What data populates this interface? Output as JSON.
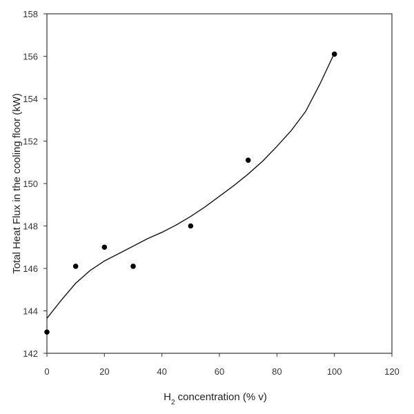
{
  "chart_data": {
    "type": "scatter",
    "title": "",
    "xlabel": {
      "main": "H",
      "sub": "2",
      "rest": " concentration (% v)"
    },
    "ylabel": "Total Heat Flux in the cooling floor (kW)",
    "xlim": [
      0,
      120
    ],
    "ylim": [
      142,
      158
    ],
    "xticks": [
      0,
      20,
      40,
      60,
      80,
      100,
      120
    ],
    "yticks": [
      142,
      144,
      146,
      148,
      150,
      152,
      154,
      156,
      158
    ],
    "grid": false,
    "legend": "none",
    "series": [
      {
        "x": [
          0,
          10,
          20,
          30,
          50,
          70,
          100
        ],
        "y": [
          143.0,
          146.1,
          147.0,
          146.1,
          148.0,
          151.1,
          156.1
        ]
      }
    ],
    "trendline": {
      "type": "polynomial",
      "x": [
        0,
        5,
        10,
        15,
        20,
        25,
        30,
        35,
        40,
        45,
        50,
        55,
        60,
        65,
        70,
        75,
        80,
        85,
        90,
        95,
        100
      ],
      "y": [
        143.65,
        144.5,
        145.3,
        145.9,
        146.35,
        146.7,
        147.05,
        147.4,
        147.7,
        148.05,
        148.45,
        148.9,
        149.4,
        149.9,
        150.45,
        151.05,
        151.75,
        152.5,
        153.4,
        154.7,
        156.15
      ]
    },
    "colors": {
      "axis": "#333333",
      "marker": "#000000",
      "line": "#111111",
      "text": "#333333"
    }
  }
}
